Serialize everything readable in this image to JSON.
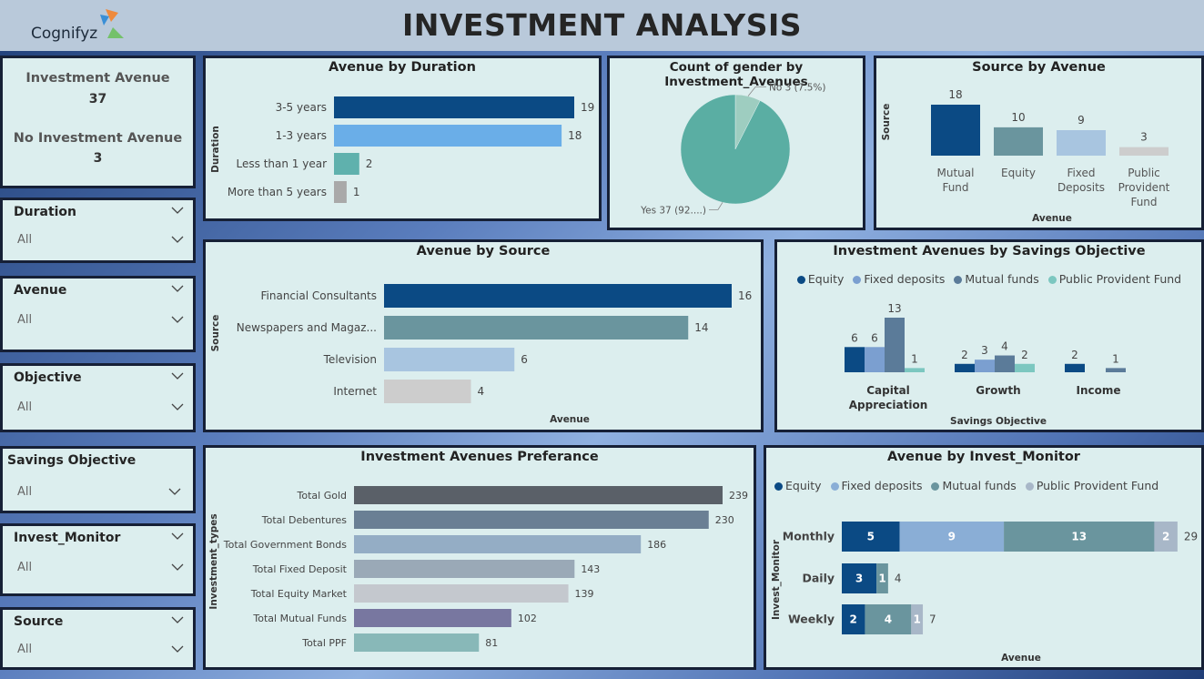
{
  "header": {
    "title": "INVESTMENT ANALYSIS",
    "brand": "Cognifyz"
  },
  "colors": {
    "navy": "#0b4a84",
    "sky": "#6aaee8",
    "teal": "#5fb1ad",
    "grey": "#a9a9a9",
    "steel": "#6a959e",
    "light": "#a8c5e0",
    "pale": "#cdcdcd"
  },
  "kpi": {
    "inv_label": "Investment Avenue",
    "inv_value": "37",
    "noinv_label": "No Investment Avenue",
    "noinv_value": "3"
  },
  "slicers": [
    {
      "label": "Duration",
      "value": "All"
    },
    {
      "label": "Avenue",
      "value": "All"
    },
    {
      "label": "Objective",
      "value": "All"
    },
    {
      "label": "Savings Objective",
      "value": "All"
    },
    {
      "label": "Invest_Monitor",
      "value": "All"
    },
    {
      "label": "Source",
      "value": "All"
    }
  ],
  "chart_data": [
    {
      "id": "duration",
      "type": "bar",
      "title": "Avenue by Duration",
      "ylabel": "Duration",
      "categories": [
        "3-5 years",
        "1-3 years",
        "Less than 1 year",
        "More than 5 years"
      ],
      "values": [
        19,
        18,
        2,
        1
      ],
      "colors": [
        "#0b4a84",
        "#6aaee8",
        "#5fb1ad",
        "#a9a9a9"
      ]
    },
    {
      "id": "gender",
      "type": "pie",
      "title": "Count of gender by Investment_Avenues",
      "slices": [
        {
          "name": "No",
          "value": 3,
          "label": "No 3 (7.5%)",
          "color": "#9ecdc0"
        },
        {
          "name": "Yes",
          "value": 37,
          "label": "Yes 37 (92....)",
          "color": "#5aaea3"
        }
      ]
    },
    {
      "id": "source_avenue",
      "type": "bar",
      "title": "Source by Avenue",
      "xlabel": "Avenue",
      "ylabel": "Source",
      "categories": [
        "Mutual Fund",
        "Equity",
        "Fixed Deposits",
        "Public Provident Fund"
      ],
      "values": [
        18,
        10,
        9,
        3
      ],
      "colors": [
        "#0b4a84",
        "#6a959e",
        "#a8c5e0",
        "#cdcdcd"
      ]
    },
    {
      "id": "avenue_source",
      "type": "bar",
      "title": "Avenue by Source",
      "xlabel": "Avenue",
      "ylabel": "Source",
      "categories": [
        "Financial Consultants",
        "Newspapers and Magaz...",
        "Television",
        "Internet"
      ],
      "values": [
        16,
        14,
        6,
        4
      ],
      "colors": [
        "#0b4a84",
        "#6a959e",
        "#a8c5e0",
        "#cdcdcd"
      ]
    },
    {
      "id": "savings",
      "type": "bar",
      "title": "Investment Avenues by Savings Objective",
      "xlabel": "Savings Objective",
      "legend": [
        {
          "name": "Equity",
          "color": "#0b4a84"
        },
        {
          "name": "Fixed deposits",
          "color": "#7b9fd0"
        },
        {
          "name": "Mutual funds",
          "color": "#5b7b99"
        },
        {
          "name": "Public Provident Fund",
          "color": "#7cc7c0"
        }
      ],
      "categories": [
        "Capital Appreciation",
        "Growth",
        "Income"
      ],
      "groups": [
        [
          6,
          6,
          13,
          1
        ],
        [
          2,
          3,
          4,
          2
        ],
        [
          2,
          null,
          1,
          null
        ]
      ]
    },
    {
      "id": "preference",
      "type": "bar",
      "title": "Investment Avenues Preferance",
      "ylabel": "Investment_types",
      "categories": [
        "Total Gold",
        "Total Debentures",
        "Total Government Bonds",
        "Total Fixed Deposit",
        "Total Equity Market",
        "Total Mutual Funds",
        "Total PPF"
      ],
      "values": [
        239,
        230,
        186,
        143,
        139,
        102,
        81
      ],
      "colors": [
        "#5a6068",
        "#6a7f94",
        "#94adc5",
        "#9aa9b7",
        "#c4c8ce",
        "#7877a0",
        "#88b8b8"
      ]
    },
    {
      "id": "monitor",
      "type": "bar",
      "title": "Avenue by Invest_Monitor",
      "xlabel": "Avenue",
      "ylabel": "Invest_Monitor",
      "legend": [
        {
          "name": "Equity",
          "color": "#0b4a84"
        },
        {
          "name": "Fixed deposits",
          "color": "#8aaed6"
        },
        {
          "name": "Mutual funds",
          "color": "#6a959e"
        },
        {
          "name": "Public Provident Fund",
          "color": "#a8b7c8"
        }
      ],
      "categories": [
        "Monthly",
        "Daily",
        "Weekly"
      ],
      "stacks": [
        [
          5,
          9,
          13,
          2
        ],
        [
          3,
          null,
          1,
          null
        ],
        [
          2,
          null,
          4,
          1
        ]
      ],
      "totals": [
        29,
        4,
        7
      ]
    }
  ]
}
